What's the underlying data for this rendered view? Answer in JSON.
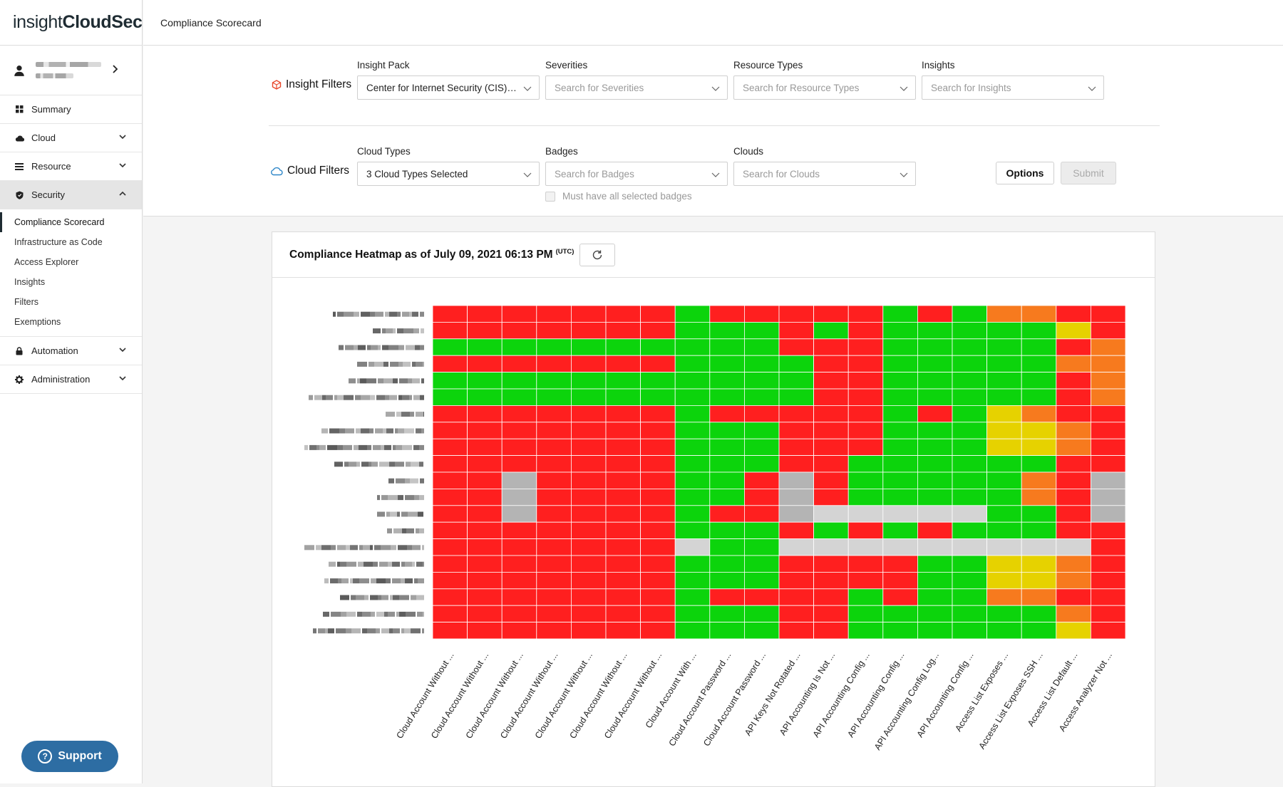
{
  "app": {
    "logo_light": "insight",
    "logo_bold": "CloudSec"
  },
  "sidebar": {
    "items": [
      {
        "label": "Summary",
        "icon": "grid-icon"
      },
      {
        "label": "Cloud",
        "icon": "cloud-icon"
      },
      {
        "label": "Resource",
        "icon": "list-icon"
      },
      {
        "label": "Security",
        "icon": "shield-icon"
      }
    ],
    "security_sub": [
      "Compliance Scorecard",
      "Infrastructure as Code",
      "Access Explorer",
      "Insights",
      "Filters",
      "Exemptions"
    ],
    "bottom_items": [
      {
        "label": "Automation",
        "icon": "lock-icon"
      },
      {
        "label": "Administration",
        "icon": "gear-icon"
      }
    ],
    "support_label": "Support"
  },
  "header": {
    "page_title": "Compliance Scorecard"
  },
  "filters": {
    "insight_label": "Insight Filters",
    "cloud_label": "Cloud Filters",
    "insight_pack": {
      "label": "Insight Pack",
      "value": "Center for Internet Security (CIS) ..."
    },
    "severities": {
      "label": "Severities",
      "placeholder": "Search for Severities"
    },
    "resource_types": {
      "label": "Resource Types",
      "placeholder": "Search for Resource Types"
    },
    "insights": {
      "label": "Insights",
      "placeholder": "Search for Insights"
    },
    "cloud_types": {
      "label": "Cloud Types",
      "value": "3 Cloud Types Selected"
    },
    "badges": {
      "label": "Badges",
      "placeholder": "Search for Badges"
    },
    "clouds": {
      "label": "Clouds",
      "placeholder": "Search for Clouds"
    },
    "must_have_badges": "Must have all selected badges",
    "options_label": "Options",
    "submit_label": "Submit"
  },
  "heatmap": {
    "title": "Compliance Heatmap as of July 09, 2021 06:13 PM",
    "tz": "(UTC)",
    "colors": {
      "R": "#ff1f1f",
      "G": "#0cd40c",
      "O": "#f77a1e",
      "Y": "#e6d200",
      "D": "#b4b4b4",
      "L": "#d4d4d4"
    },
    "columns": [
      "Cloud Account Without ...",
      "Cloud Account Without ...",
      "Cloud Account Without ...",
      "Cloud Account Without ...",
      "Cloud Account Without ...",
      "Cloud Account Without ...",
      "Cloud Account Without ...",
      "Cloud Account With ...",
      "Cloud Account Password ...",
      "Cloud Account Password ...",
      "API Keys Not Rotated ...",
      "API Accounting Is Not ...",
      "API Accounting Config ...",
      "API Accounting Config ...",
      "API Accounting Config Log...",
      "API Accounting Config ...",
      "Access List Exposes ...",
      "Access List Exposes SSH ...",
      "Access List Default ...",
      "Access Analyzer Not ..."
    ],
    "rows": [
      "RRRRRRRGRRRRRGRGOORR",
      "RRRRRRRGGGRGRGGGGGYR",
      "GGGGGGGGGGRRRGGGGGRO",
      "RRRRRRRGGGGRRGGGGGOO",
      "GGGGGGGGGGGRRGGGGGRO",
      "GGGGGGGGGGGRRGGGGGRO",
      "RRRRRRRGRRRRRGRGYORR",
      "RRRRRRRGGGRRRGGGYYOR",
      "RRRRRRRGGGRRRGGGYYOR",
      "RRRRRRRGGGRRGGGGGGRR",
      "RRDRRRRGGRDRGGGGGORD",
      "RRDRRRRGGRDRGGGGGORD",
      "RRDRRRRGRRDLLLLLGGRD",
      "RRRRRRRGGGRGRGRGGGRR",
      "RRRRRRRLGGLLLLLLLLLR",
      "RRRRRRRGGGRRRRGGYYOR",
      "RRRRRRRGGGRRRRGGYYOR",
      "RRRRRRRGRRRRGRGGOORR",
      "RRRRRRRGGGRRGGGGGGOR",
      "RRRRRRRGGGRRGGGGGGYR"
    ]
  }
}
